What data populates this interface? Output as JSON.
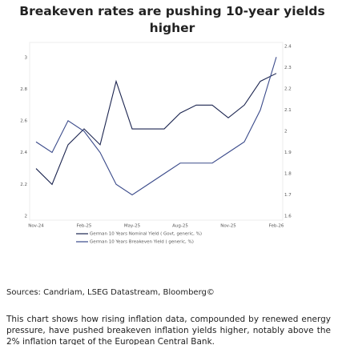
{
  "chart_data": {
    "type": "line",
    "title": "Breakeven rates are pushing 10-year yields higher",
    "categories": [
      "Nov-24",
      null,
      null,
      "Feb-25",
      null,
      null,
      "May-25",
      null,
      null,
      "Aug-25",
      null,
      null,
      "Nov-25",
      null,
      null,
      "Feb-26"
    ],
    "series": [
      {
        "name": "German 10 Years Nominal Yield ( Govt, generic, %)",
        "color": "#1c2550",
        "axis": "y",
        "values": [
          2.3,
          2.2,
          2.45,
          2.55,
          2.45,
          2.85,
          2.55,
          2.55,
          2.55,
          2.65,
          2.7,
          2.7,
          2.62,
          2.7,
          2.85,
          2.9
        ]
      },
      {
        "name": "German 10 Years Breakeven Yield ( generic, %)",
        "color": "#3a4a8a",
        "axis": "y2",
        "values": [
          1.95,
          1.9,
          2.05,
          2.0,
          1.9,
          1.75,
          1.7,
          1.75,
          1.8,
          1.85,
          1.85,
          1.85,
          1.9,
          1.95,
          2.1,
          2.35
        ]
      }
    ],
    "ylim": [
      2,
      3.07
    ],
    "yticks": [
      2,
      2.2,
      2.4,
      2.6,
      2.8,
      3
    ],
    "y2lim": [
      1.6,
      2.4
    ],
    "y2ticks": [
      1.6,
      1.7,
      1.8,
      1.9,
      2.0,
      2.1,
      2.2,
      2.3,
      2.4
    ]
  },
  "sources": "Sources: Candriam, LSEG Datastream, Bloomberg©",
  "description": "This chart shows how rising inflation data, compounded by renewed energy pressure, have pushed breakeven inflation yields higher, notably above the 2% inflation target of the European Central Bank."
}
